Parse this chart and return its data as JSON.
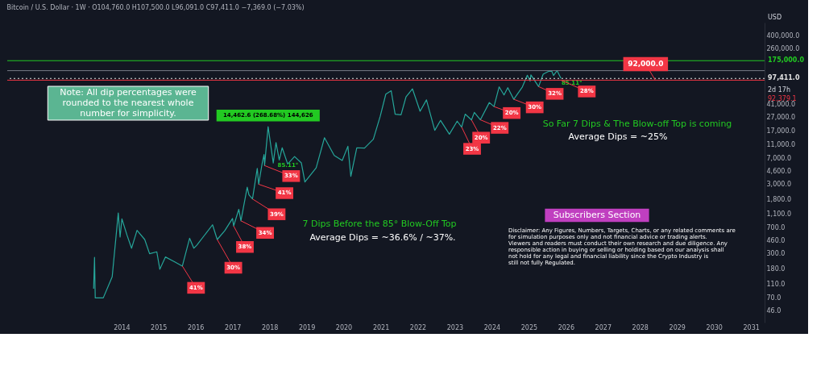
{
  "chart_data": {
    "type": "line",
    "title": "Bitcoin / U.S. Dollar · 1W · O104,760.0 H107,500.0 L96,091.0 C97,411.0 −7,369.0 (−7.03%)",
    "x": [
      "2013-04-01",
      "2013-04-10",
      "2013-04-17",
      "2013-07-05",
      "2013-10-01",
      "2013-11-30",
      "2013-12-18",
      "2014-01-05",
      "2014-02-25",
      "2014-04-10",
      "2014-06-03",
      "2014-08-18",
      "2014-10-05",
      "2014-12-15",
      "2015-01-14",
      "2015-03-10",
      "2015-06-10",
      "2015-08-24",
      "2015-11-04",
      "2015-12-15",
      "2016-01-15",
      "2016-06-17",
      "2016-08-02",
      "2016-10-15",
      "2016-12-31",
      "2017-01-11",
      "2017-03-03",
      "2017-03-24",
      "2017-05-25",
      "2017-06-11",
      "2017-07-16",
      "2017-09-01",
      "2017-09-15",
      "2017-10-20",
      "2017-11-07",
      "2017-11-12",
      "2017-12-17",
      "2018-02-06",
      "2018-03-05",
      "2018-04-06",
      "2018-05-05",
      "2018-06-28",
      "2018-09-04",
      "2018-11-10",
      "2018-12-15",
      "2019-04-05",
      "2019-06-26",
      "2019-09-30",
      "2019-12-18",
      "2020-02-12",
      "2020-03-12",
      "2020-05-10",
      "2020-07-25",
      "2020-10-20",
      "2020-12-27",
      "2021-02-20",
      "2021-04-14",
      "2021-05-23",
      "2021-07-20",
      "2021-09-07",
      "2021-11-10",
      "2022-01-24",
      "2022-03-28",
      "2022-06-18",
      "2022-08-14",
      "2022-11-09",
      "2023-01-25",
      "2023-03-10",
      "2023-04-14",
      "2023-06-15",
      "2023-07-13",
      "2023-09-11",
      "2023-12-08",
      "2024-01-23",
      "2024-03-14",
      "2024-05-01",
      "2024-06-07",
      "2024-08-05",
      "2024-10-29",
      "2024-12-17",
      "2025-01-13",
      "2025-01-21",
      "2025-04-07",
      "2025-05-22",
      "2025-07-14",
      "2025-08-14",
      "2025-09-01",
      "2025-10-06",
      "2025-11-14"
    ],
    "series": [
      {
        "color": "#26a69a",
        "values": [
          95,
          266,
          70,
          70,
          140,
          1150,
          520,
          950,
          550,
          360,
          650,
          480,
          300,
          320,
          180,
          270,
          230,
          200,
          500,
          360,
          400,
          780,
          480,
          640,
          960,
          750,
          1300,
          890,
          2700,
          2100,
          1830,
          5000,
          2970,
          6000,
          7900,
          5500,
          19800,
          6000,
          11700,
          6600,
          9900,
          5800,
          7400,
          6000,
          3200,
          5100,
          13800,
          7700,
          6500,
          10400,
          3850,
          9900,
          9800,
          13100,
          28000,
          58000,
          64800,
          30000,
          29300,
          52900,
          69000,
          33000,
          48000,
          17600,
          24400,
          15500,
          23800,
          19600,
          30000,
          24800,
          31800,
          24900,
          44000,
          38500,
          73800,
          56500,
          71900,
          49000,
          73600,
          108300,
          89200,
          109500,
          74500,
          111900,
          123200,
          124500,
          107300,
          126200,
          97411
        ]
      }
    ],
    "xlim": [
      "2010-12-01",
      "2031-05-15"
    ],
    "xticks": [
      "2014",
      "2015",
      "2016",
      "2017",
      "2018",
      "2019",
      "2020",
      "2021",
      "2022",
      "2023",
      "2024",
      "2025",
      "2026",
      "2027",
      "2028",
      "2029",
      "2030",
      "2031"
    ],
    "ylim": [
      31,
      615000
    ],
    "log": true,
    "yticks": [
      {
        "value": 46,
        "label": "46.0"
      },
      {
        "value": 70,
        "label": "70.0"
      },
      {
        "value": 110,
        "label": "110.0"
      },
      {
        "value": 180,
        "label": "180.0"
      },
      {
        "value": 300,
        "label": "300.0"
      },
      {
        "value": 460,
        "label": "460.0"
      },
      {
        "value": 700,
        "label": "700.0"
      },
      {
        "value": 1100,
        "label": "1,100.0"
      },
      {
        "value": 1800,
        "label": "1,800.0"
      },
      {
        "value": 3000,
        "label": "3,000.0"
      },
      {
        "value": 4600,
        "label": "4,600.0"
      },
      {
        "value": 7000,
        "label": "7,000.0"
      },
      {
        "value": 11000,
        "label": "11,000.0"
      },
      {
        "value": 17000,
        "label": "17,000.0"
      },
      {
        "value": 27000,
        "label": "27,000.0"
      },
      {
        "value": 41000,
        "label": "41,000.0"
      },
      {
        "value": 260000,
        "label": "260,000.0"
      },
      {
        "value": 400000,
        "label": "400,000.0"
      }
    ],
    "grid": false,
    "ref_lines": [
      {
        "axis": "y",
        "value": 126000,
        "color": "#787b86",
        "line_style": "solid"
      },
      {
        "axis": "y",
        "value": 97411,
        "label": "97,411.0",
        "color": "#e0e0e0",
        "line_style": "dotted"
      },
      {
        "axis": "y",
        "value": 92000,
        "color": "#f23645",
        "line_style": "solid"
      },
      {
        "axis": "y",
        "value": 175000,
        "label": "175,000.0",
        "color": "#22c922",
        "line_style": "solid"
      }
    ],
    "annotations": [
      "Note: All dip percentages were rounded to the nearest whole number for simplicity.",
      "7 Dips Before the 85° Blow-Off Top",
      "Average Dips =  ~36.6% / ~37%.",
      "So Far 7 Dips & The Blow-off Top is coming",
      "Average Dips =  ~25%",
      "Subscribers Section",
      "Disclaimer: Any Figures, Numbers, Targets, Charts, or any related comments are for simulation purposes only and not financial advice or trading alerts. Viewers and readers must conduct their own research and due diligence. Any responsible action in buying or selling or holding based on our analysis shall not hold for any legal and financial liability since the Crypto Industry is still not fully Regulated.",
      "USD",
      "2d 17h",
      "92,379.1",
      {
        "text": "14,462.6 (268.68%) 144,626",
        "x": "2017-12-17",
        "y": 19800
      },
      {
        "text": "85.11°",
        "x": "2018-07-01",
        "y": 5500
      },
      {
        "text": "85.11°",
        "x": "2026-03-01",
        "y": 92000
      },
      {
        "text": "92,000.0",
        "x": "2028-06-01",
        "y": 92000
      },
      {
        "text": "41%",
        "x": "2015-08-24",
        "y": 200
      },
      {
        "text": "30%",
        "x": "2016-08-02",
        "y": 480
      },
      {
        "text": "38%",
        "x": "2017-01-11",
        "y": 750
      },
      {
        "text": "34%",
        "x": "2017-03-24",
        "y": 890
      },
      {
        "text": "39%",
        "x": "2017-07-16",
        "y": 1830
      },
      {
        "text": "41%",
        "x": "2017-09-15",
        "y": 2970
      },
      {
        "text": "33%",
        "x": "2017-11-12",
        "y": 5500
      },
      {
        "text": "23%",
        "x": "2023-03-10",
        "y": 19600
      },
      {
        "text": "20%",
        "x": "2023-06-15",
        "y": 24800
      },
      {
        "text": "22%",
        "x": "2023-09-11",
        "y": 24900
      },
      {
        "text": "20%",
        "x": "2024-01-23",
        "y": 38500
      },
      {
        "text": "30%",
        "x": "2024-08-05",
        "y": 49000
      },
      {
        "text": "32%",
        "x": "2025-04-07",
        "y": 74500
      },
      {
        "text": "28%",
        "x": "2025-11-14",
        "y": 92000
      }
    ]
  }
}
